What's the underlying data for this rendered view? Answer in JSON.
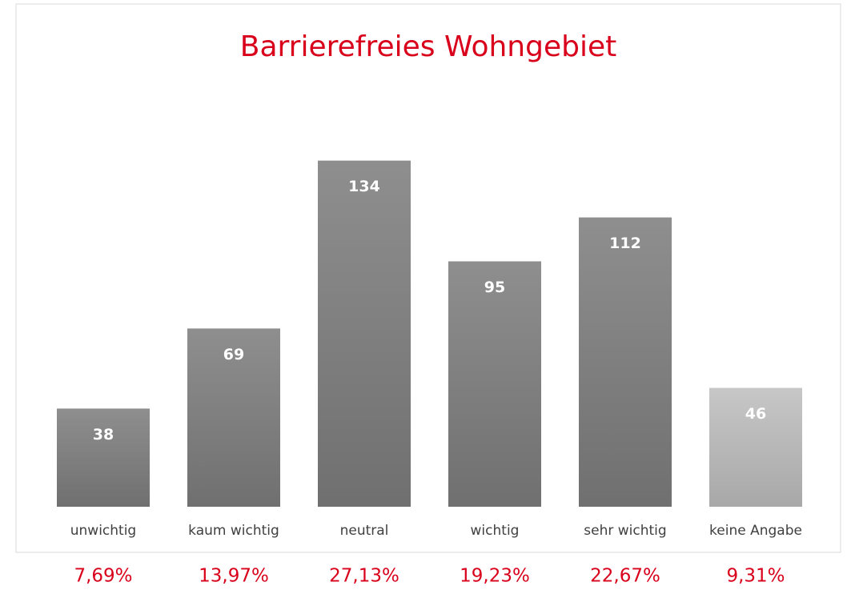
{
  "chart_data": {
    "type": "bar",
    "title": "Barrierefreies Wohngebiet",
    "categories": [
      "unwichtig",
      "kaum wichtig",
      "neutral",
      "wichtig",
      "sehr wichtig",
      "keine Angabe"
    ],
    "values": [
      38,
      69,
      134,
      95,
      112,
      46
    ],
    "colors": [
      "#7f7f7f",
      "#7f7f7f",
      "#7f7f7f",
      "#7f7f7f",
      "#7f7f7f",
      "#bfbfbf"
    ],
    "ylim": [
      0,
      150
    ],
    "annotations": [
      "7,69%",
      "13,97%",
      "27,13%",
      "19,23%",
      "22,67%",
      "9,31%"
    ]
  }
}
